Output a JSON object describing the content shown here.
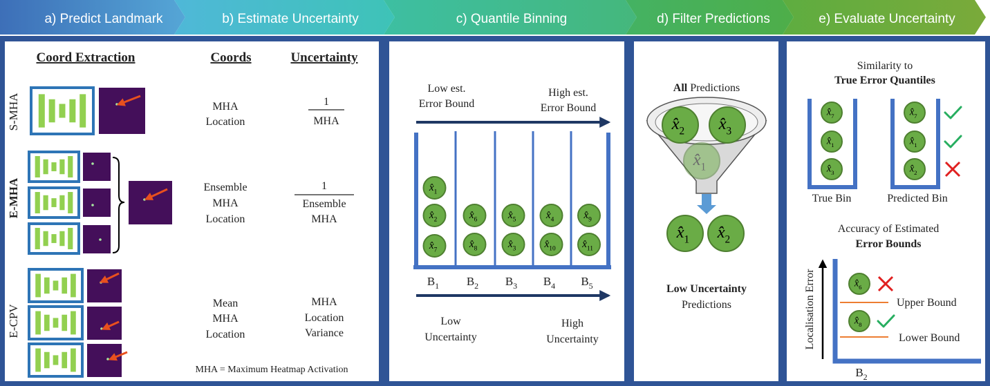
{
  "headers": {
    "a": "a) Predict Landmark",
    "b": "b) Estimate Uncertainty",
    "c": "c) Quantile Binning",
    "d": "d) Filter Predictions",
    "e": "e) Evaluate Uncertainty"
  },
  "panel_a": {
    "col_coord_extraction": "Coord Extraction",
    "col_coords": "Coords",
    "col_uncertainty": "Uncertainty",
    "rows": {
      "smha": {
        "name": "S-MHA",
        "coords": [
          "MHA",
          "Location"
        ],
        "unc_num": "1",
        "unc_den": [
          "MHA"
        ]
      },
      "emha": {
        "name": "E-MHA",
        "coords": [
          "Ensemble",
          "MHA",
          "Location"
        ],
        "unc_num": "1",
        "unc_den": [
          "Ensemble",
          "MHA"
        ]
      },
      "ecpv": {
        "name": "E-CPV",
        "coords": [
          "Mean",
          "MHA",
          "Location"
        ],
        "unc": [
          "MHA",
          "Location",
          "Variance"
        ]
      }
    },
    "footnote": "MHA = Maximum Heatmap Activation"
  },
  "panel_c": {
    "low_err": [
      "Low est.",
      "Error Bound"
    ],
    "high_err": [
      "High est.",
      "Error Bound"
    ],
    "low_unc": [
      "Low",
      "Uncertainty"
    ],
    "high_unc": [
      "High",
      "Uncertainty"
    ],
    "bin_letter": "B",
    "bins": [
      {
        "label": "1",
        "points": [
          "1",
          "2",
          "7"
        ]
      },
      {
        "label": "2",
        "points": [
          "6",
          "8"
        ]
      },
      {
        "label": "3",
        "points": [
          "5",
          "3"
        ]
      },
      {
        "label": "4",
        "points": [
          "4",
          "10"
        ]
      },
      {
        "label": "5",
        "points": [
          "9",
          "11"
        ]
      }
    ]
  },
  "panel_d": {
    "all_bold": "All",
    "all_rest": " Predictions",
    "funnel_points": [
      "2",
      "3",
      "1"
    ],
    "output_points": [
      "1",
      "2"
    ],
    "low_unc_bold": "Low Uncertainty",
    "predictions": "Predictions"
  },
  "panel_e": {
    "sim_line1": "Similarity to",
    "sim_line2": "True Error Quantiles",
    "true_bin": {
      "label": "True Bin",
      "points": [
        "7",
        "1",
        "3"
      ]
    },
    "pred_bin": {
      "label": "Predicted Bin",
      "points": [
        "7",
        "1",
        "2"
      ],
      "marks": [
        "check",
        "check",
        "cross"
      ]
    },
    "acc_line1": "Accuracy of Estimated",
    "acc_line2": "Error Bounds",
    "yaxis": "Localisation Error",
    "upper": "Upper Bound",
    "lower": "Lower Bound",
    "bin_letter": "B",
    "bin_sub": "2",
    "bound_points": [
      {
        "label": "6",
        "mark": "cross"
      },
      {
        "label": "8",
        "mark": "check"
      }
    ]
  },
  "colors": {
    "header_blue": "#4a86c8",
    "header_cyan": "#45bcc6",
    "header_teal": "#3fb88c",
    "header_green": "#4db04e",
    "header_lime": "#6aab3c",
    "frame_navy": "#2f5496",
    "bin_blue": "#4472c4",
    "node_green": "#6aac46",
    "node_border": "#4e7f30",
    "check_green": "#27ae60",
    "cross_red": "#e02020",
    "arrow_navy": "#1f3864",
    "heatmap_purple": "#440f5a",
    "arrow_red": "#e8501e",
    "nn_green": "#92d050"
  }
}
